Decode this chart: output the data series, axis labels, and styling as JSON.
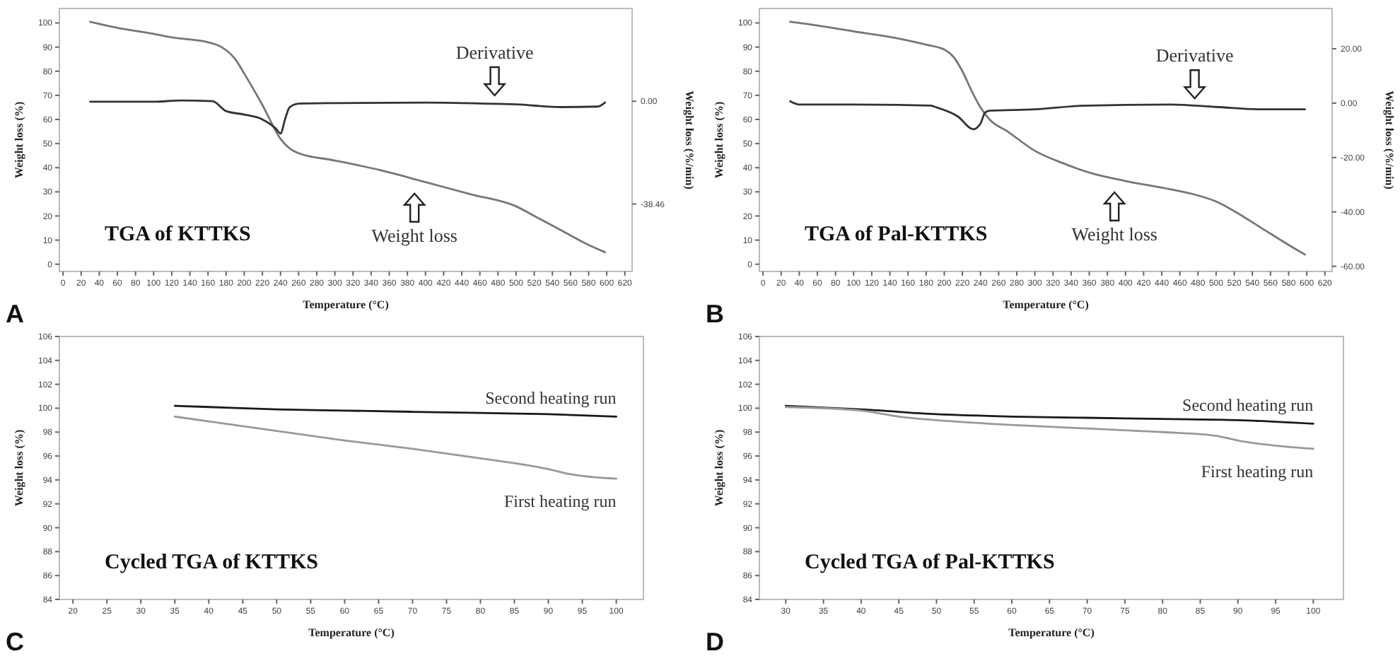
{
  "chart_data": [
    {
      "type": "line",
      "title": "TGA of KTTKS",
      "xlabel": "Temperature (°C)",
      "ylabel": "Weight loss (%)",
      "y2label": "Weight loss (%/min)",
      "annotations": [
        "A"
      ],
      "xlim": [
        -4,
        628
      ],
      "xticks": [
        0,
        20,
        40,
        60,
        80,
        100,
        120,
        140,
        160,
        180,
        200,
        220,
        240,
        260,
        280,
        300,
        320,
        340,
        360,
        380,
        400,
        420,
        440,
        460,
        480,
        500,
        520,
        540,
        560,
        580,
        600,
        620
      ],
      "ylim": [
        -3,
        106
      ],
      "yticks": [
        0,
        10,
        20,
        30,
        40,
        50,
        60,
        70,
        80,
        90,
        100
      ],
      "y2lim": [
        -63.7,
        34.7
      ],
      "y2ticks": [
        {
          "value": 0,
          "label": "0.00"
        },
        {
          "value": -38.46,
          "label": "-38.46"
        }
      ],
      "series": [
        {
          "name": "Weight loss",
          "color": "#777777",
          "x": [
            30,
            60,
            100,
            120,
            160,
            175,
            190,
            200,
            220,
            240,
            250,
            260,
            300,
            350,
            400,
            450,
            500,
            520,
            550,
            580,
            598
          ],
          "values": [
            100.5,
            98,
            95.5,
            94,
            92,
            90,
            85,
            79,
            66,
            52,
            48,
            46,
            43,
            39,
            34,
            29,
            24,
            20,
            14,
            8,
            5
          ]
        },
        {
          "name": "Derivative",
          "color": "#333333",
          "axis": "y2",
          "x": [
            30,
            100,
            130,
            165,
            180,
            200,
            220,
            235,
            240,
            245,
            250,
            260,
            300,
            400,
            480,
            500,
            550,
            590,
            598
          ],
          "values": [
            -0.2,
            -0.2,
            0.3,
            0,
            -3.7,
            -5,
            -6.8,
            -10.3,
            -12.1,
            -6.8,
            -2.3,
            -0.9,
            -0.7,
            -0.5,
            -1,
            -1.2,
            -2.2,
            -2,
            -0.5
          ]
        }
      ]
    },
    {
      "type": "line",
      "title": "TGA of Pal-KTTKS",
      "xlabel": "Temperature (°C)",
      "ylabel": "Weight loss (%)",
      "y2label": "Weight loss (%/min)",
      "annotations": [
        "B"
      ],
      "xlim": [
        -4,
        628
      ],
      "xticks": [
        0,
        20,
        40,
        60,
        80,
        100,
        120,
        140,
        160,
        180,
        200,
        220,
        240,
        260,
        280,
        300,
        320,
        340,
        360,
        380,
        400,
        420,
        440,
        460,
        480,
        500,
        520,
        540,
        560,
        580,
        600,
        620
      ],
      "ylim": [
        -3,
        106
      ],
      "yticks": [
        0,
        10,
        20,
        30,
        40,
        50,
        60,
        70,
        80,
        90,
        100
      ],
      "y2lim": [
        -61.9,
        34.8
      ],
      "y2ticks": [
        {
          "value": 20,
          "label": "20.00"
        },
        {
          "value": 0,
          "label": "0.00"
        },
        {
          "value": -20,
          "label": "-20.00"
        },
        {
          "value": -40,
          "label": "-40.00"
        },
        {
          "value": -60,
          "label": "-60.00"
        }
      ],
      "series": [
        {
          "name": "Weight loss",
          "color": "#777777",
          "x": [
            30,
            50,
            100,
            150,
            180,
            200,
            210,
            220,
            230,
            240,
            250,
            270,
            300,
            330,
            360,
            400,
            450,
            480,
            500,
            520,
            550,
            580,
            598
          ],
          "values": [
            100.5,
            99.5,
            96.5,
            93.5,
            91,
            89,
            86,
            80,
            72,
            65,
            60,
            55,
            47,
            42,
            38,
            34.5,
            31,
            28.5,
            26,
            22,
            15,
            8,
            4
          ]
        },
        {
          "name": "Derivative",
          "color": "#333333",
          "axis": "y2",
          "x": [
            30,
            40,
            100,
            185,
            190,
            215,
            232,
            240,
            245,
            250,
            300,
            350,
            450,
            500,
            550,
            598
          ],
          "values": [
            0.7,
            -0.5,
            -0.5,
            -0.9,
            -1.4,
            -4.9,
            -9.6,
            -7.5,
            -3.5,
            -2.8,
            -2.3,
            -1,
            -0.5,
            -1.4,
            -2.3,
            -2.3
          ]
        }
      ]
    },
    {
      "type": "line",
      "title": "Cycled TGA of KTTKS",
      "xlabel": "Temperature (°C)",
      "ylabel": "Weight loss (%)",
      "annotations": [
        "C"
      ],
      "xlim": [
        18,
        104
      ],
      "xticks": [
        20,
        25,
        30,
        35,
        40,
        45,
        50,
        55,
        60,
        65,
        70,
        75,
        80,
        85,
        90,
        95,
        100
      ],
      "ylim": [
        84,
        106
      ],
      "yticks": [
        84,
        86,
        88,
        90,
        92,
        94,
        96,
        98,
        100,
        102,
        104,
        106
      ],
      "series": [
        {
          "name": "Second heating run",
          "color": "#1a1a1a",
          "x": [
            35,
            40,
            50,
            60,
            70,
            80,
            90,
            100
          ],
          "values": [
            100.2,
            100.1,
            99.9,
            99.8,
            99.7,
            99.6,
            99.5,
            99.3
          ]
        },
        {
          "name": "First heating run",
          "color": "#999999",
          "x": [
            35,
            40,
            50,
            60,
            70,
            80,
            90,
            93,
            100
          ],
          "values": [
            99.3,
            98.9,
            98.1,
            97.3,
            96.6,
            95.8,
            94.9,
            94.5,
            94.1
          ]
        }
      ]
    },
    {
      "type": "line",
      "title": "Cycled TGA of Pal-KTTKS",
      "xlabel": "Temperature (°C)",
      "ylabel": "Weight loss (%)",
      "annotations": [
        "D"
      ],
      "xlim": [
        26.5,
        104
      ],
      "xticks": [
        30,
        35,
        40,
        45,
        50,
        55,
        60,
        65,
        70,
        75,
        80,
        85,
        90,
        95,
        100
      ],
      "ylim": [
        84,
        106
      ],
      "yticks": [
        84,
        86,
        88,
        90,
        92,
        94,
        96,
        98,
        100,
        102,
        104,
        106
      ],
      "series": [
        {
          "name": "Second heating run",
          "color": "#1a1a1a",
          "x": [
            30,
            40,
            50,
            60,
            70,
            80,
            90,
            100
          ],
          "values": [
            100.2,
            99.9,
            99.5,
            99.3,
            99.2,
            99.1,
            99,
            98.7
          ]
        },
        {
          "name": "First heating run",
          "color": "#999999",
          "x": [
            30,
            40,
            45,
            50,
            60,
            70,
            80,
            87,
            90,
            100
          ],
          "values": [
            100.1,
            99.8,
            99.3,
            99,
            98.6,
            98.3,
            98,
            97.7,
            97.3,
            96.6
          ]
        }
      ]
    }
  ]
}
